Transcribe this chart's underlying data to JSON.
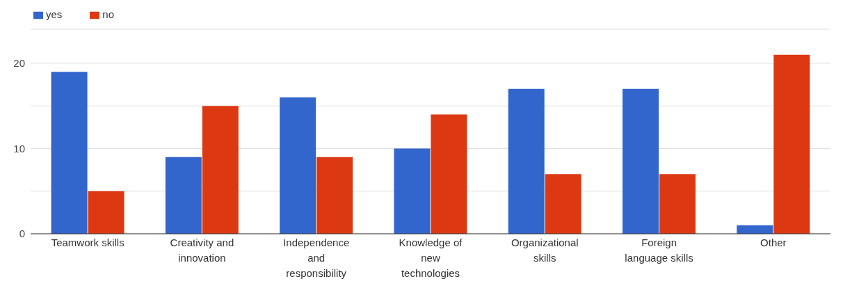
{
  "chart_data": {
    "type": "bar",
    "categories": [
      "Teamwork skills",
      "Creativity and innovation",
      "Independence and responsibility",
      "Knowledge of new technologies",
      "Organizational skills",
      "Foreign language skills",
      "Other"
    ],
    "series": [
      {
        "name": "yes",
        "color": "#3366cc",
        "values": [
          19,
          9,
          16,
          10,
          17,
          17,
          1
        ]
      },
      {
        "name": "no",
        "color": "#dc3912",
        "values": [
          5,
          15,
          9,
          14,
          7,
          7,
          21
        ]
      }
    ],
    "ylim": [
      0,
      24
    ],
    "yticks": [
      0,
      {
        "value": 5,
        "label": null
      },
      10,
      {
        "value": 15,
        "label": null
      },
      20
    ],
    "grid": "y",
    "legend": "top left"
  }
}
